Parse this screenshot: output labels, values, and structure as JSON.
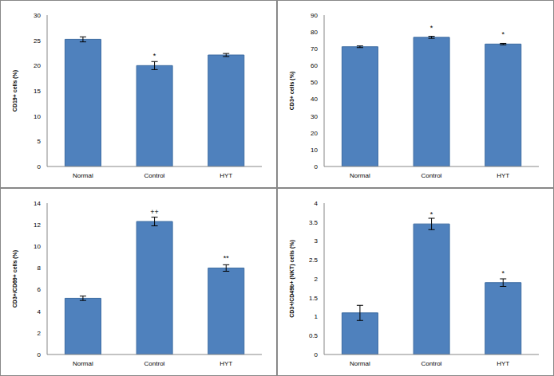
{
  "chart_data": [
    {
      "type": "bar",
      "y_label": "CD19+ cells (%)",
      "categories": [
        "Normal",
        "Control",
        "HYT"
      ],
      "values": [
        25.2,
        20.0,
        22.1
      ],
      "error": [
        0.5,
        0.8,
        0.3
      ],
      "annotations": [
        null,
        "*",
        null
      ],
      "color": "#4f81bd",
      "ylim": [
        0,
        30
      ],
      "yticks": [
        0,
        5,
        10,
        15,
        20,
        25,
        30
      ]
    },
    {
      "type": "bar",
      "y_label": "CD3+ cells (%)",
      "categories": [
        "Normal",
        "Control",
        "HYT"
      ],
      "values": [
        71.2,
        76.8,
        72.8
      ],
      "error": [
        0.5,
        0.6,
        0.4
      ],
      "annotations": [
        null,
        "*",
        "*"
      ],
      "color": "#4f81bd",
      "ylim": [
        0,
        90
      ],
      "yticks": [
        0,
        10,
        20,
        30,
        40,
        50,
        60,
        70,
        80,
        90
      ]
    },
    {
      "type": "bar",
      "y_label": "CD3+/CD69+ cells (%)",
      "categories": [
        "Normal",
        "Control",
        "HYT"
      ],
      "values": [
        5.2,
        12.3,
        8.0
      ],
      "error": [
        0.2,
        0.4,
        0.3
      ],
      "annotations": [
        null,
        "++",
        "**"
      ],
      "color": "#4f81bd",
      "ylim": [
        0,
        14
      ],
      "yticks": [
        0,
        2,
        4,
        6,
        8,
        10,
        12,
        14
      ]
    },
    {
      "type": "bar",
      "y_label": "CD3+/CD49b+ (NKT) cells (%)",
      "categories": [
        "Normal",
        "Control",
        "HYT"
      ],
      "values": [
        1.1,
        3.45,
        1.9
      ],
      "error": [
        0.2,
        0.15,
        0.1
      ],
      "annotations": [
        null,
        "*",
        "*"
      ],
      "color": "#4f81bd",
      "ylim": [
        0,
        4
      ],
      "yticks": [
        0,
        0.5,
        1,
        1.5,
        2,
        2.5,
        3,
        3.5,
        4
      ]
    }
  ]
}
